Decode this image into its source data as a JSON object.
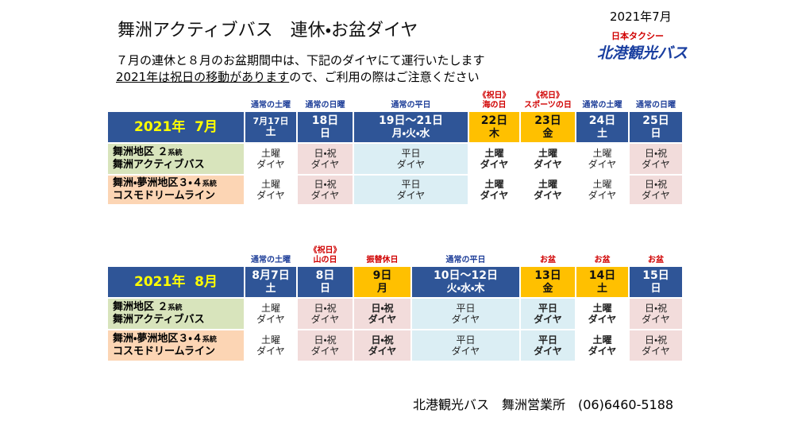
{
  "header": {
    "title": "舞洲アクティブバス　連休・お盆ダイヤ",
    "date": "2021年7月",
    "logo_small": "日本タクシー",
    "logo_main": "北港観光バス"
  },
  "intro": {
    "line1": "７月の連休と８月のお盆期間中は、下記のダイヤにて運行いたします",
    "line2_underlined": "2021年は祝日の移動があります",
    "line2_rest": "ので、ご利用の際はご注意ください"
  },
  "tables": [
    {
      "month": "2021年  7月",
      "columns": [
        {
          "note": [
            "通常の土曜"
          ],
          "note_color": "#1f3f99",
          "date": "7月17日",
          "weekday": "土",
          "highlight": false,
          "bg": "#ffffff",
          "bold": false
        },
        {
          "note": [
            "通常の日曜"
          ],
          "note_color": "#1f3f99",
          "date": "18日",
          "weekday": "日",
          "highlight": false,
          "bg": "#f2dcdb",
          "bold": false
        },
        {
          "note": [
            "通常の平日"
          ],
          "note_color": "#1f3f99",
          "date": "19日～21日",
          "weekday": "月・火・水",
          "highlight": false,
          "bg": "#dbeef4",
          "bold": false
        },
        {
          "note": [
            "《祝日》",
            "海の日"
          ],
          "note_color": "#d00000",
          "date": "22日",
          "weekday": "木",
          "highlight": true,
          "bg": "#ffffff",
          "bold": true
        },
        {
          "note": [
            "《祝日》",
            "スポーツの日"
          ],
          "note_color": "#d00000",
          "date": "23日",
          "weekday": "金",
          "highlight": true,
          "bg": "#ffffff",
          "bold": true
        },
        {
          "note": [
            "通常の土曜"
          ],
          "note_color": "#1f3f99",
          "date": "24日",
          "weekday": "土",
          "highlight": false,
          "bg": "#ffffff",
          "bold": false
        },
        {
          "note": [
            "通常の日曜"
          ],
          "note_color": "#1f3f99",
          "date": "25日",
          "weekday": "日",
          "highlight": false,
          "bg": "#f2dcdb",
          "bold": false
        }
      ],
      "rows": [
        {
          "name_main": "舞洲地区 ２",
          "name_small": "系統",
          "name_line2": "舞洲アクティブバス",
          "bg": "#d8e4bc",
          "cells": [
            [
              "土曜",
              "ダイヤ"
            ],
            [
              "日・祝",
              "ダイヤ"
            ],
            [
              "平日",
              "ダイヤ"
            ],
            [
              "土曜",
              "ダイヤ"
            ],
            [
              "土曜",
              "ダイヤ"
            ],
            [
              "土曜",
              "ダイヤ"
            ],
            [
              "日・祝",
              "ダイヤ"
            ]
          ]
        },
        {
          "name_main": "舞洲・夢洲地区３・４",
          "name_small": "系統",
          "name_line2": "コスモドリームライン",
          "bg": "#fcd5b4",
          "cells": [
            [
              "土曜",
              "ダイヤ"
            ],
            [
              "日・祝",
              "ダイヤ"
            ],
            [
              "平日",
              "ダイヤ"
            ],
            [
              "土曜",
              "ダイヤ"
            ],
            [
              "土曜",
              "ダイヤ"
            ],
            [
              "土曜",
              "ダイヤ"
            ],
            [
              "日・祝",
              "ダイヤ"
            ]
          ]
        }
      ]
    },
    {
      "month": "2021年  8月",
      "columns": [
        {
          "note": [
            "通常の土曜"
          ],
          "note_color": "#1f3f99",
          "date": "8月7日",
          "weekday": "土",
          "highlight": false,
          "bg": "#ffffff",
          "bold": false
        },
        {
          "note": [
            "《祝日》",
            "山の日"
          ],
          "note_color": "#d00000",
          "date": "8日",
          "weekday": "日",
          "highlight": false,
          "bg": "#f2dcdb",
          "bold": false
        },
        {
          "note": [
            "振替休日"
          ],
          "note_color": "#d00000",
          "date": "9日",
          "weekday": "月",
          "highlight": true,
          "bg": "#f2dcdb",
          "bold": true
        },
        {
          "note": [
            "通常の平日"
          ],
          "note_color": "#1f3f99",
          "date": "10日～12日",
          "weekday": "火・水・木",
          "highlight": false,
          "bg": "#dbeef4",
          "bold": false
        },
        {
          "note": [
            "お盆"
          ],
          "note_color": "#d00000",
          "date": "13日",
          "weekday": "金",
          "highlight": true,
          "bg": "#dbeef4",
          "bold": true
        },
        {
          "note": [
            "お盆"
          ],
          "note_color": "#d00000",
          "date": "14日",
          "weekday": "土",
          "highlight": true,
          "bg": "#ffffff",
          "bold": true
        },
        {
          "note": [
            "お盆"
          ],
          "note_color": "#d00000",
          "date": "15日",
          "weekday": "日",
          "highlight": false,
          "bg": "#f2dcdb",
          "bold": false
        }
      ],
      "rows": [
        {
          "name_main": "舞洲地区 ２",
          "name_small": "系統",
          "name_line2": "舞洲アクティブバス",
          "bg": "#d8e4bc",
          "cells": [
            [
              "土曜",
              "ダイヤ"
            ],
            [
              "日・祝",
              "ダイヤ"
            ],
            [
              "日・祝",
              "ダイヤ"
            ],
            [
              "平日",
              "ダイヤ"
            ],
            [
              "平日",
              "ダイヤ"
            ],
            [
              "土曜",
              "ダイヤ"
            ],
            [
              "日・祝",
              "ダイヤ"
            ]
          ]
        },
        {
          "name_main": "舞洲・夢洲地区３・４",
          "name_small": "系統",
          "name_line2": "コスモドリームライン",
          "bg": "#fcd5b4",
          "cells": [
            [
              "土曜",
              "ダイヤ"
            ],
            [
              "日・祝",
              "ダイヤ"
            ],
            [
              "日・祝",
              "ダイヤ"
            ],
            [
              "平日",
              "ダイヤ"
            ],
            [
              "平日",
              "ダイヤ"
            ],
            [
              "土曜",
              "ダイヤ"
            ],
            [
              "日・祝",
              "ダイヤ"
            ]
          ]
        }
      ]
    }
  ],
  "footer": "北港観光バス　舞洲営業所　(06)6460-5188"
}
